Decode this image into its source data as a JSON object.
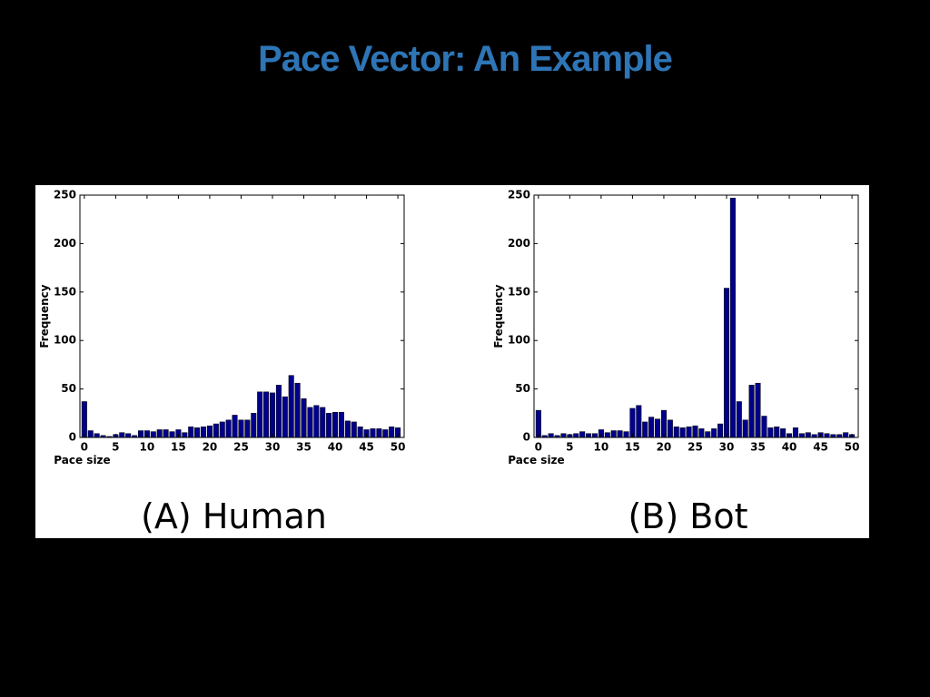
{
  "title": "Pace Vector: An Example",
  "chart_data": [
    {
      "type": "bar",
      "caption": "(A) Human",
      "xlabel": "Pace size",
      "ylabel": "Frequency",
      "color": "#00008b",
      "x": [
        0,
        1,
        2,
        3,
        4,
        5,
        6,
        7,
        8,
        9,
        10,
        11,
        12,
        13,
        14,
        15,
        16,
        17,
        18,
        19,
        20,
        21,
        22,
        23,
        24,
        25,
        26,
        27,
        28,
        29,
        30,
        31,
        32,
        33,
        34,
        35,
        36,
        37,
        38,
        39,
        40,
        41,
        42,
        43,
        44,
        45,
        46,
        47,
        48,
        49,
        50
      ],
      "values": [
        37,
        7,
        4,
        2,
        1,
        3,
        5,
        4,
        2,
        7,
        7,
        6,
        8,
        8,
        6,
        8,
        5,
        11,
        10,
        11,
        12,
        14,
        16,
        18,
        23,
        18,
        18,
        25,
        47,
        47,
        46,
        54,
        42,
        64,
        56,
        40,
        31,
        33,
        31,
        25,
        26,
        26,
        17,
        16,
        11,
        8,
        9,
        9,
        8,
        11,
        10
      ],
      "xlim": [
        -0.7,
        51
      ],
      "xticks": [
        0,
        5,
        10,
        15,
        20,
        25,
        30,
        35,
        40,
        45,
        50
      ],
      "ylim": [
        0,
        250
      ],
      "yticks": [
        0,
        50,
        100,
        150,
        200,
        250
      ],
      "grid": false
    },
    {
      "type": "bar",
      "caption": "(B) Bot",
      "xlabel": "Pace size",
      "ylabel": "Frequency",
      "color": "#00008b",
      "x": [
        0,
        1,
        2,
        3,
        4,
        5,
        6,
        7,
        8,
        9,
        10,
        11,
        12,
        13,
        14,
        15,
        16,
        17,
        18,
        19,
        20,
        21,
        22,
        23,
        24,
        25,
        26,
        27,
        28,
        29,
        30,
        31,
        32,
        33,
        34,
        35,
        36,
        37,
        38,
        39,
        40,
        41,
        42,
        43,
        44,
        45,
        46,
        47,
        48,
        49,
        50
      ],
      "values": [
        28,
        2,
        4,
        2,
        4,
        3,
        4,
        6,
        4,
        4,
        8,
        5,
        7,
        7,
        6,
        30,
        33,
        16,
        21,
        19,
        28,
        18,
        11,
        10,
        11,
        12,
        9,
        6,
        9,
        14,
        154,
        247,
        37,
        18,
        54,
        56,
        22,
        10,
        11,
        9,
        4,
        10,
        4,
        5,
        3,
        5,
        4,
        3,
        3,
        5,
        3
      ],
      "xlim": [
        -0.7,
        51
      ],
      "xticks": [
        0,
        5,
        10,
        15,
        20,
        25,
        30,
        35,
        40,
        45,
        50
      ],
      "ylim": [
        0,
        250
      ],
      "yticks": [
        0,
        50,
        100,
        150,
        200,
        250
      ],
      "grid": false
    }
  ]
}
